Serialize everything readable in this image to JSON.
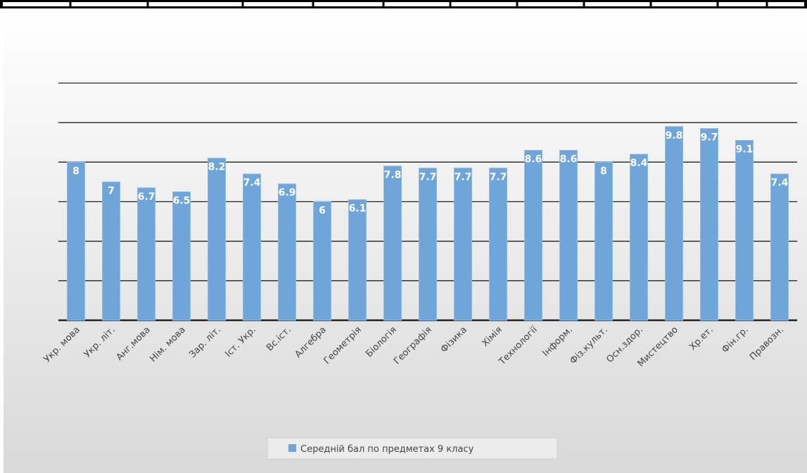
{
  "chart_data": {
    "type": "bar",
    "categories": [
      "Укр. мова",
      "Укр. літ.",
      "Анг.мова",
      "Нім. мова",
      "Зар. літ.",
      "Іст. Укр.",
      "Вс.іст.",
      "Алгебра",
      "Геометрія",
      "Біологія",
      "Географія",
      "Фізика",
      "Хімія",
      "Технології",
      "Інформ.",
      "Фіз.культ.",
      "Осн.здор.",
      "Мистецтво",
      "Хр.ет.",
      "Фін.гр.",
      "Правозн."
    ],
    "series": [
      {
        "name": "Середній бал по предметах 9 класу",
        "color": "#6fa5d9",
        "values": [
          8,
          7,
          6.7,
          6.5,
          8.2,
          7.4,
          6.9,
          6,
          6.1,
          7.8,
          7.7,
          7.7,
          7.7,
          8.6,
          8.6,
          8,
          8.4,
          9.8,
          9.7,
          9.1,
          7.4
        ]
      }
    ],
    "ylim": [
      0,
      12
    ],
    "yticks": [
      0,
      2,
      4,
      6,
      8,
      10,
      12
    ],
    "grid": true,
    "legend": "bottom"
  }
}
